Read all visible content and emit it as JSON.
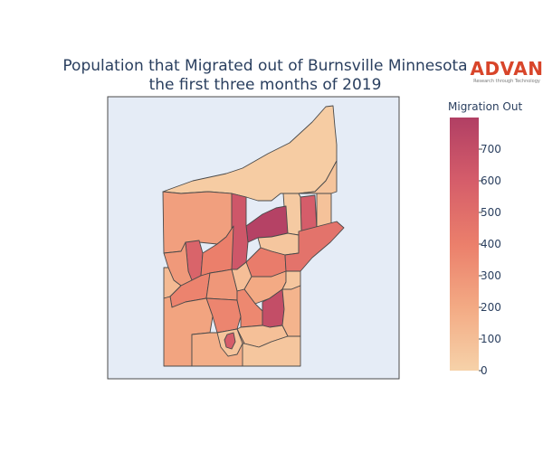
{
  "title": {
    "line1": "Population that Migrated out of Burnsville Minnesota",
    "line2": "the first three months of 2019"
  },
  "logo": {
    "name": "ADVAN",
    "tagline": "Research through Technology",
    "color": "#d8452a"
  },
  "colorbar": {
    "title": "Migration Out",
    "min": 0,
    "max": 800,
    "ticks": [
      0,
      100,
      200,
      300,
      400,
      500,
      600,
      700
    ],
    "tick_labels": [
      "0",
      "100",
      "200",
      "300",
      "400",
      "500",
      "600",
      "700"
    ],
    "colorscale": [
      "#f6d2a9",
      "#f3aa84",
      "#eb7f6b",
      "#d55d6a",
      "#b13f64"
    ]
  },
  "map": {
    "background": "#e5ecf6",
    "border_color": "#4a4a4a"
  },
  "chart_data": {
    "type": "heatmap",
    "subtype": "choropleth",
    "title": "Population that Migrated out of Burnsville Minnesota the first three months of 2019",
    "colorbar_title": "Migration Out",
    "range": [
      0,
      800
    ],
    "regions": [
      {
        "id": "north-large",
        "value": 30
      },
      {
        "id": "northwest",
        "value": 250
      },
      {
        "id": "east-top-small",
        "value": 70
      },
      {
        "id": "east-tall",
        "value": 600
      },
      {
        "id": "east-right-strip",
        "value": 80
      },
      {
        "id": "east-right-strip2",
        "value": 40
      },
      {
        "id": "center-top-dark",
        "value": 780
      },
      {
        "id": "center-left-dark",
        "value": 560
      },
      {
        "id": "center-tall-dark",
        "value": 640
      },
      {
        "id": "center-right-small",
        "value": 60
      },
      {
        "id": "center-mid",
        "value": 400
      },
      {
        "id": "center-mid-right",
        "value": 420
      },
      {
        "id": "center-east-red",
        "value": 470
      },
      {
        "id": "left-mid",
        "value": 380
      },
      {
        "id": "left-upper",
        "value": 280
      },
      {
        "id": "left-small-light",
        "value": 120
      },
      {
        "id": "sw-mid",
        "value": 370
      },
      {
        "id": "s-center",
        "value": 290
      },
      {
        "id": "s-center-right",
        "value": 360
      },
      {
        "id": "s-dark",
        "value": 700
      },
      {
        "id": "s-right-light",
        "value": 60
      },
      {
        "id": "sw-left",
        "value": 230
      },
      {
        "id": "s-small-dark",
        "value": 600
      },
      {
        "id": "s-bottom-light",
        "value": 70
      },
      {
        "id": "s-bottom-mid",
        "value": 180
      },
      {
        "id": "se-bottom",
        "value": 60
      },
      {
        "id": "right-lower-light",
        "value": 150
      },
      {
        "id": "center-narrow-light",
        "value": 100
      },
      {
        "id": "s-mid-light",
        "value": 90
      },
      {
        "id": "center-narrow-2",
        "value": 200
      }
    ]
  }
}
